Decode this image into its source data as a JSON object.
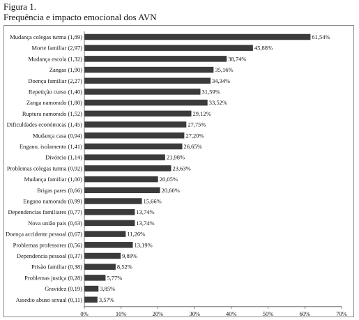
{
  "figure_label": "Figura 1.",
  "figure_title": "Frequência e impacto emocional dos AVN",
  "chart_data": {
    "type": "bar",
    "orientation": "horizontal",
    "title": "",
    "xlabel": "",
    "ylabel": "",
    "xlim": [
      0,
      70
    ],
    "xticks": [
      0,
      10,
      20,
      30,
      40,
      50,
      60,
      70
    ],
    "xtick_labels": [
      "0%",
      "10%",
      "20%",
      "30%",
      "40%",
      "50%",
      "60%",
      "70%"
    ],
    "grid": false,
    "bar_color": "#3b3b3b",
    "categories": [
      "Mudança colegas turma (1,89)",
      "Morte familiar (2,97)",
      "Mudança escola (1,32)",
      "Zangas (1,90)",
      "Doença familiar (2,27)",
      "Repetição curso (1,40)",
      "Zanga namorado (1,80)",
      "Ruptura namorado (1,52)",
      "Dificuldades económicas (1,45)",
      "Mudança casa (0,94)",
      "Engano, isolamento (1,41)",
      "Divórcio (1,14)",
      "Problemas colegas turma (0,92)",
      "Mudança familiar (1,00)",
      "Brigas pares (0,66)",
      "Engano namorado (0,99)",
      "Dependencias familiares (0,77)",
      "Nova união pais (0,63)",
      "Doença accidente pessoal (0,67)",
      "Problemas professores (0,56)",
      "Dependencia pessoal (0,37)",
      "Prisão familiar (0,38)",
      "Problemas justiça (0,28)",
      "Gravidez (0,19)",
      "Assedio abuso sexual (0,11)"
    ],
    "values": [
      61.54,
      45.88,
      38.74,
      35.16,
      34.34,
      31.59,
      33.52,
      29.12,
      27.75,
      27.2,
      26.65,
      21.98,
      23.63,
      20.05,
      20.6,
      15.66,
      13.74,
      13.74,
      11.26,
      13.19,
      9.89,
      8.52,
      5.77,
      3.85,
      3.57
    ],
    "value_labels": [
      "61,54%",
      "45,88%",
      "38,74%",
      "35,16%",
      "34,34%",
      "31,59%",
      "33,52%",
      "29,12%",
      "27,75%",
      "27,20%",
      "26,65%",
      "21,98%",
      "23,63%",
      "20,05%",
      "20,60%",
      "15,66%",
      "13,74%",
      "13,74%",
      "11,26%",
      "13,19%",
      "9,89%",
      "8,52%",
      "5,77%",
      "3,85%",
      "3,57%"
    ]
  }
}
